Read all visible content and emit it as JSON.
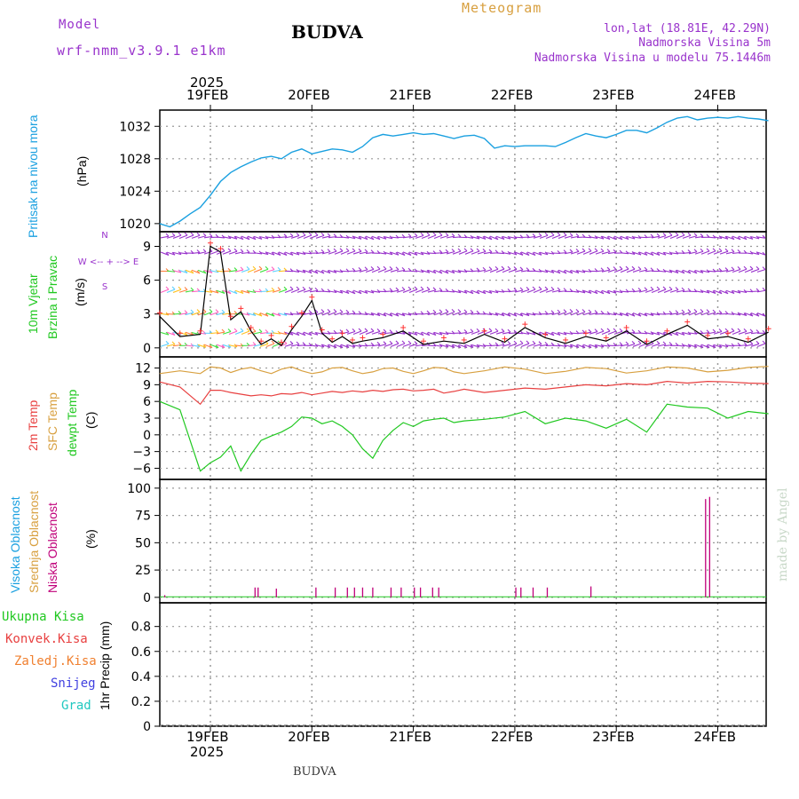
{
  "header": {
    "model_label": "Model",
    "model_name": "wrf-nmm_v3.9.1 e1km",
    "title": "BUDVA",
    "meteogram": "Meteogram",
    "lonlat": "lon,lat (18.81E, 42.29N)",
    "elevation": "Nadmorska Visina 5m",
    "model_elevation": "Nadmorska Visina u modelu 75.1446m",
    "footer_station": "BUDVA",
    "credit": "made by Angel"
  },
  "colors": {
    "pressure": "#1aa0e0",
    "wind_speed": "#000000",
    "temp2m": "#e84040",
    "sfc_temp": "#d8a040",
    "dewpt": "#20c820",
    "high_cloud": "#1aa0e0",
    "mid_cloud": "#d8a040",
    "low_cloud": "#c0007a",
    "purple": "#9933cc"
  },
  "time_axis": {
    "top_year": "2025",
    "bottom_year": "2025",
    "days": [
      "19FEB",
      "20FEB",
      "21FEB",
      "22FEB",
      "23FEB",
      "24FEB"
    ]
  },
  "chart_data": [
    {
      "type": "line",
      "name": "pressure",
      "ylabel_lines": [
        "Pritisak na nivou mora",
        "(hPa)"
      ],
      "ylim": [
        1019,
        1034
      ],
      "yticks": [
        1020,
        1024,
        1028,
        1032
      ],
      "x_days": [
        0,
        0.1,
        0.2,
        0.3,
        0.4,
        0.5,
        0.6,
        0.7,
        0.8,
        0.9,
        1.0,
        1.1,
        1.2,
        1.3,
        1.4,
        1.5,
        1.6,
        1.7,
        1.8,
        1.9,
        2.0,
        2.1,
        2.2,
        2.3,
        2.4,
        2.5,
        2.6,
        2.7,
        2.8,
        2.9,
        3.0,
        3.1,
        3.2,
        3.3,
        3.4,
        3.5,
        3.6,
        3.7,
        3.8,
        3.9,
        4.0,
        4.1,
        4.2,
        4.3,
        4.4,
        4.5,
        4.6,
        4.7,
        4.8,
        4.9,
        5.0,
        5.1,
        5.2,
        5.3,
        5.4,
        5.5,
        5.6,
        5.7,
        5.8,
        5.9,
        6.0
      ],
      "values": [
        1020.0,
        1019.6,
        1020.3,
        1021.2,
        1022.0,
        1023.5,
        1025.2,
        1026.3,
        1027.0,
        1027.6,
        1028.1,
        1028.3,
        1028.0,
        1028.8,
        1029.2,
        1028.6,
        1028.9,
        1029.2,
        1029.1,
        1028.8,
        1029.5,
        1030.6,
        1031.0,
        1030.8,
        1031.0,
        1031.2,
        1031.0,
        1031.1,
        1030.8,
        1030.5,
        1030.8,
        1030.9,
        1030.5,
        1029.3,
        1029.6,
        1029.5,
        1029.6,
        1029.6,
        1029.6,
        1029.5,
        1030.0,
        1030.6,
        1031.1,
        1030.8,
        1030.6,
        1031.0,
        1031.5,
        1031.5,
        1031.2,
        1031.8,
        1032.5,
        1033.0,
        1033.2,
        1032.8,
        1033.0,
        1033.1,
        1033.0,
        1033.2,
        1033.0,
        1032.9,
        1032.7
      ]
    },
    {
      "type": "line",
      "name": "wind",
      "ylabel_lines": [
        "10m Vjetar",
        "Brzina i Pravac",
        "(m/s)"
      ],
      "compass": [
        "N",
        "^",
        "|",
        "W <-- + --> E",
        "|",
        "v",
        "S"
      ],
      "ylim": [
        -0.8,
        10.3
      ],
      "yticks": [
        0,
        3,
        6,
        9
      ],
      "arrow_levels": [
        0.2,
        1.3,
        3.0,
        5.0,
        6.8,
        8.4,
        9.8
      ],
      "x_days": [
        0,
        0.2,
        0.4,
        0.5,
        0.6,
        0.7,
        0.8,
        0.9,
        1.0,
        1.1,
        1.2,
        1.3,
        1.4,
        1.5,
        1.6,
        1.7,
        1.8,
        1.9,
        2.0,
        2.2,
        2.4,
        2.6,
        2.8,
        3.0,
        3.2,
        3.4,
        3.6,
        3.8,
        4.0,
        4.2,
        4.4,
        4.6,
        4.8,
        5.0,
        5.2,
        5.4,
        5.6,
        5.8,
        6.0
      ],
      "values": [
        2.8,
        1.0,
        1.2,
        9.0,
        8.5,
        2.5,
        3.2,
        1.5,
        0.3,
        0.8,
        0.2,
        1.6,
        2.8,
        4.2,
        1.3,
        0.5,
        1.0,
        0.4,
        0.6,
        0.9,
        1.5,
        0.3,
        0.6,
        0.4,
        1.2,
        0.5,
        1.8,
        0.9,
        0.4,
        1.0,
        0.6,
        1.5,
        0.3,
        1.2,
        2.0,
        0.8,
        1.0,
        0.5,
        1.4
      ]
    },
    {
      "type": "line",
      "name": "temperature",
      "ylabel_lines": [
        "2m Temp",
        "SFC Temp",
        "dewpt Temp",
        "(C)"
      ],
      "ylim": [
        -8,
        14
      ],
      "yticks": [
        -6,
        -3,
        0,
        3,
        6,
        9,
        12
      ],
      "ytick_labels": [
        "−6",
        "−3",
        "0",
        "3",
        "6",
        "9",
        "12"
      ],
      "x_days": [
        0,
        0.2,
        0.4,
        0.5,
        0.6,
        0.7,
        0.8,
        0.9,
        1.0,
        1.1,
        1.2,
        1.3,
        1.4,
        1.5,
        1.6,
        1.7,
        1.8,
        1.9,
        2.0,
        2.1,
        2.2,
        2.3,
        2.4,
        2.5,
        2.6,
        2.7,
        2.8,
        2.9,
        3.0,
        3.2,
        3.4,
        3.6,
        3.8,
        4.0,
        4.2,
        4.4,
        4.6,
        4.8,
        5.0,
        5.2,
        5.4,
        5.6,
        5.8,
        6.0
      ],
      "series": [
        {
          "name": "2m Temp",
          "values": [
            9.5,
            8.6,
            5.5,
            8.0,
            8.0,
            7.6,
            7.3,
            7.0,
            7.2,
            7.0,
            7.4,
            7.3,
            7.6,
            7.2,
            7.5,
            7.8,
            7.6,
            7.9,
            7.7,
            8.0,
            7.8,
            8.1,
            8.2,
            7.9,
            8.0,
            8.2,
            7.5,
            7.8,
            8.2,
            7.6,
            8.0,
            8.4,
            8.2,
            8.6,
            9.0,
            8.8,
            9.2,
            9.0,
            9.6,
            9.3,
            9.6,
            9.5,
            9.3,
            9.2
          ]
        },
        {
          "name": "SFC Temp",
          "values": [
            11.0,
            11.5,
            11.0,
            12.2,
            12.0,
            11.2,
            11.8,
            12.1,
            11.5,
            11.0,
            11.8,
            12.2,
            11.5,
            11.0,
            11.3,
            12.0,
            12.1,
            11.5,
            11.0,
            11.3,
            11.9,
            12.0,
            11.4,
            11.0,
            11.5,
            12.1,
            12.0,
            11.3,
            11.0,
            11.5,
            12.2,
            11.8,
            11.0,
            11.4,
            12.1,
            11.9,
            11.1,
            11.5,
            12.2,
            12.0,
            11.3,
            11.6,
            12.1,
            12.3
          ]
        },
        {
          "name": "dewpt Temp",
          "values": [
            6.0,
            4.5,
            -6.5,
            -5.0,
            -4.0,
            -2.0,
            -6.5,
            -3.5,
            -1.0,
            -0.2,
            0.5,
            1.5,
            3.2,
            3.0,
            2.0,
            2.5,
            1.5,
            0.0,
            -2.5,
            -4.2,
            -1.0,
            0.8,
            2.2,
            1.5,
            2.5,
            2.8,
            3.0,
            2.2,
            2.5,
            2.8,
            3.2,
            4.2,
            2.0,
            3.0,
            2.5,
            1.2,
            2.8,
            0.5,
            5.5,
            5.0,
            4.8,
            3.0,
            4.2,
            3.8
          ]
        }
      ]
    },
    {
      "type": "bar",
      "name": "cloud",
      "ylabel_lines": [
        "Visoka Oblacnost",
        "Srednja Oblacnost",
        "Niska Oblacnost",
        "(%)"
      ],
      "ylim": [
        -5,
        108
      ],
      "yticks": [
        0,
        25,
        50,
        75,
        100
      ],
      "low_cloud_bars": [
        {
          "x": 0.05,
          "v": 2
        },
        {
          "x": 0.94,
          "v": 9
        },
        {
          "x": 0.97,
          "v": 9
        },
        {
          "x": 1.15,
          "v": 8
        },
        {
          "x": 1.54,
          "v": 9
        },
        {
          "x": 1.73,
          "v": 9
        },
        {
          "x": 1.85,
          "v": 9
        },
        {
          "x": 1.92,
          "v": 9
        },
        {
          "x": 2.0,
          "v": 9
        },
        {
          "x": 2.1,
          "v": 9
        },
        {
          "x": 2.28,
          "v": 9
        },
        {
          "x": 2.38,
          "v": 9
        },
        {
          "x": 2.51,
          "v": 9
        },
        {
          "x": 2.57,
          "v": 9
        },
        {
          "x": 2.69,
          "v": 9
        },
        {
          "x": 2.75,
          "v": 9
        },
        {
          "x": 3.51,
          "v": 9
        },
        {
          "x": 3.56,
          "v": 9
        },
        {
          "x": 3.68,
          "v": 9
        },
        {
          "x": 3.82,
          "v": 9
        },
        {
          "x": 4.25,
          "v": 10
        },
        {
          "x": 5.38,
          "v": 90
        },
        {
          "x": 5.42,
          "v": 92
        }
      ]
    },
    {
      "type": "bar",
      "name": "precip",
      "ylabel_lines": [
        "1hr Precip (mm)"
      ],
      "legend": [
        "Ukupna Kisa",
        "Konvek.Kisa",
        "Zaledj.Kisa",
        "Snijeg",
        "Grad"
      ],
      "legend_colors": [
        "#20c820",
        "#e84040",
        "#f08030",
        "#4040e0",
        "#20c8c0"
      ],
      "ylim": [
        0,
        0.99
      ],
      "yticks": [
        0,
        0.2,
        0.4,
        0.6,
        0.8
      ],
      "values": []
    }
  ]
}
